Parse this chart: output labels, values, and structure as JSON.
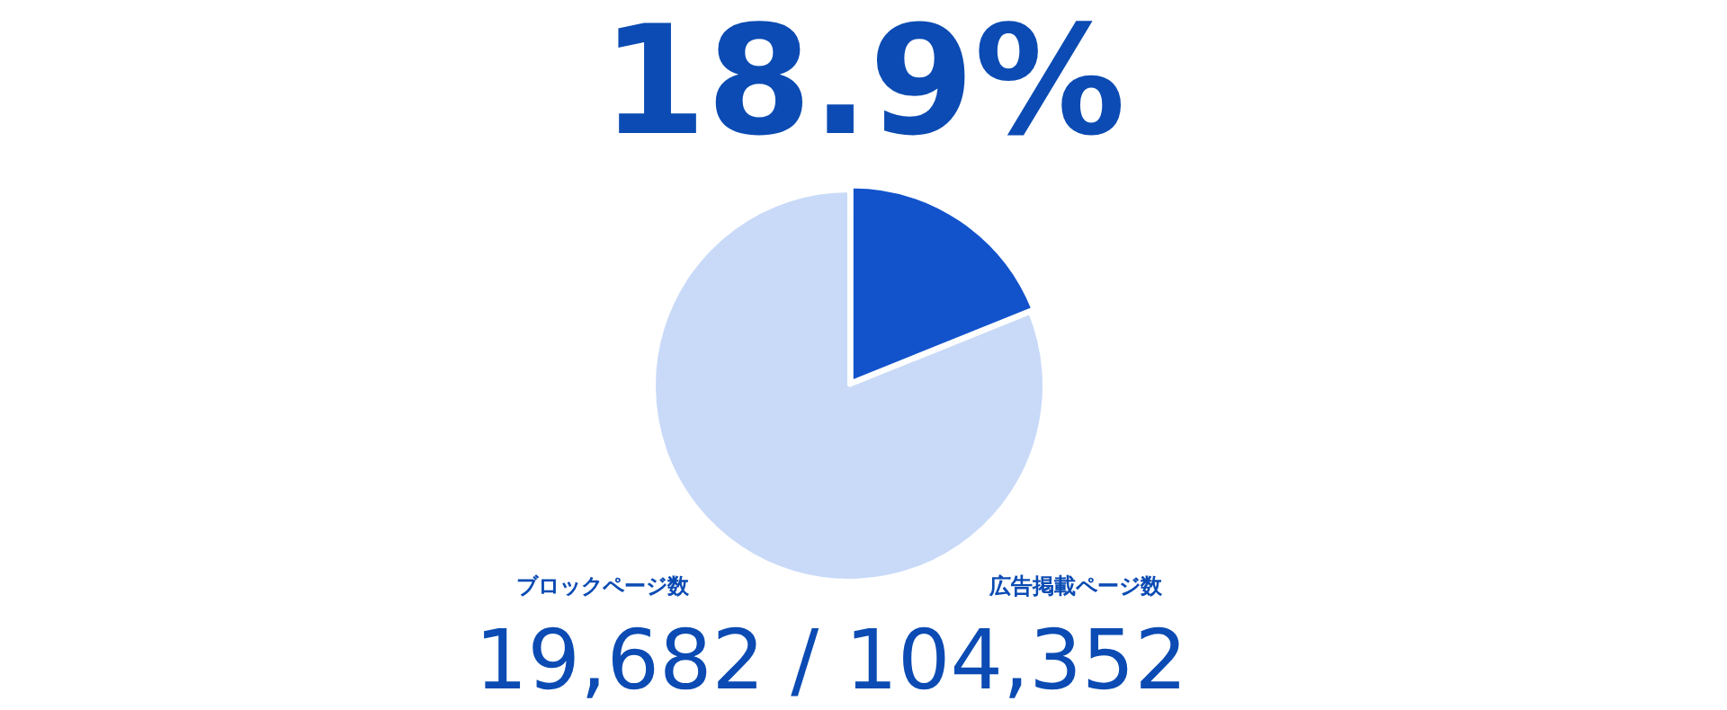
{
  "chart_data": {
    "type": "pie",
    "title": "18.9%",
    "categories": [
      null,
      null
    ],
    "values": [
      18.9,
      81.1
    ],
    "colors": [
      "#1253cc",
      "#c9daf8"
    ],
    "legend": false,
    "annotations": [
      "ブロックページ数",
      "広告掲載ページ数",
      "19,682 / 104,352"
    ]
  }
}
